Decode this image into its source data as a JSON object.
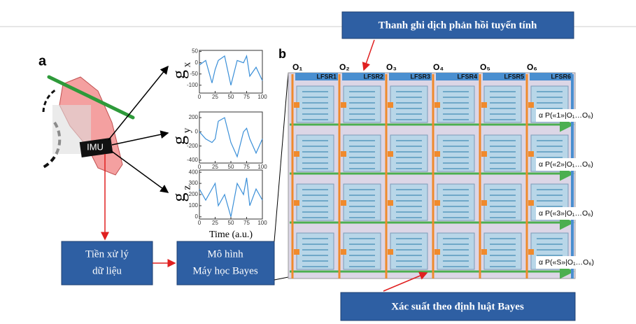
{
  "panel_a": {
    "label": "a",
    "imu_label": "IMU",
    "x_axis_label": "Time (a.u.)",
    "plots": [
      {
        "axis_label": "g",
        "axis_sub": "x",
        "xlim": [
          0,
          100
        ],
        "xticks": [
          0,
          25,
          50,
          75,
          100
        ],
        "ylim": [
          -135,
          55
        ],
        "yticks": [
          50,
          0,
          -50,
          -100
        ],
        "x": [
          0,
          10,
          20,
          25,
          30,
          40,
          50,
          60,
          70,
          75,
          80,
          90,
          100
        ],
        "values": [
          -10,
          10,
          -90,
          -30,
          10,
          30,
          -100,
          10,
          0,
          30,
          -60,
          -20,
          -80
        ]
      },
      {
        "axis_label": "g",
        "axis_sub": "y",
        "xlim": [
          0,
          100
        ],
        "xticks": [
          0,
          25,
          50,
          75,
          100
        ],
        "ylim": [
          -440,
          280
        ],
        "yticks": [
          200,
          0,
          -200,
          -400
        ],
        "x": [
          0,
          10,
          20,
          25,
          30,
          40,
          50,
          60,
          70,
          75,
          80,
          90,
          100
        ],
        "values": [
          0,
          -100,
          -150,
          -100,
          150,
          200,
          -150,
          -350,
          0,
          50,
          -100,
          -300,
          -100
        ]
      },
      {
        "axis_label": "g",
        "axis_sub": "z",
        "xlim": [
          0,
          100
        ],
        "xticks": [
          0,
          25,
          50,
          75,
          100
        ],
        "ylim": [
          -20,
          420
        ],
        "yticks": [
          400,
          300,
          200,
          100,
          0
        ],
        "x": [
          0,
          10,
          20,
          25,
          30,
          40,
          50,
          60,
          70,
          75,
          80,
          90,
          100
        ],
        "values": [
          250,
          150,
          250,
          300,
          100,
          200,
          0,
          300,
          200,
          350,
          100,
          250,
          150
        ]
      }
    ]
  },
  "panel_b": {
    "label": "b",
    "observations": [
      "O₁",
      "O₂",
      "O₃",
      "O₄",
      "O₅",
      "O₆"
    ],
    "registers": [
      "LFSR1",
      "LFSR2",
      "LFSR3",
      "LFSR4",
      "LFSR5",
      "LFSR6"
    ],
    "outputs": [
      "α P(«1»|O₁…O₆)",
      "α P(«2»|O₁…O₆)",
      "α P(«3»|O₁…O₆)",
      "α P(«S»|O₁…O₆)"
    ]
  },
  "boxes": {
    "preprocessing": [
      "Tiền xử lý",
      "dữ liệu"
    ],
    "model": [
      "Mô hình",
      "Máy học Bayes"
    ],
    "lfsr_callout": "Thanh ghi dịch phản hồi tuyến tính",
    "bayes_callout": "Xác suất theo định luật Bayes"
  }
}
